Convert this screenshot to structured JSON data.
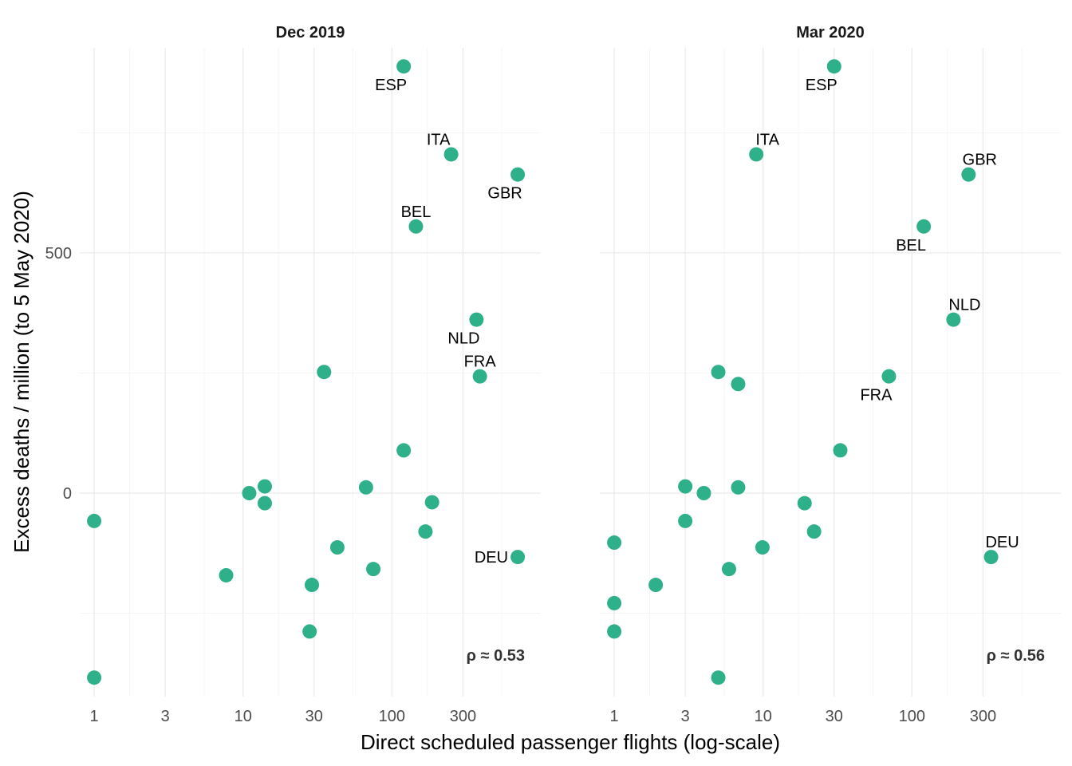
{
  "chart_data": {
    "type": "scatter",
    "xlabel": "Direct scheduled passenger flights (log-scale)",
    "ylabel": "Excess deaths / million (to 5 May 2020)",
    "x_scale": "log10",
    "xlim": [
      0.8,
      1000
    ],
    "ylim": [
      -420,
      930
    ],
    "x_ticks": [
      1,
      3,
      10,
      30,
      100,
      300
    ],
    "x_tick_labels": [
      "1",
      "3",
      "10",
      "30",
      "100",
      "300"
    ],
    "y_ticks": [
      0,
      500
    ],
    "y_tick_labels": [
      "0",
      "500"
    ],
    "point_color": "#2eb08a",
    "panels": [
      {
        "title": "Dec 2019",
        "annotation": "ρ ≈ 0.53",
        "points": [
          {
            "x": 120,
            "y": 888,
            "label": "ESP",
            "label_pos": "below-left"
          },
          {
            "x": 250,
            "y": 705,
            "label": "ITA",
            "label_pos": "above-left"
          },
          {
            "x": 700,
            "y": 663,
            "label": "GBR",
            "label_pos": "below-left"
          },
          {
            "x": 145,
            "y": 555,
            "label": "BEL",
            "label_pos": "above"
          },
          {
            "x": 370,
            "y": 361,
            "label": "NLD",
            "label_pos": "below-left"
          },
          {
            "x": 390,
            "y": 243,
            "label": "FRA",
            "label_pos": "above"
          },
          {
            "x": 700,
            "y": -133,
            "label": "DEU",
            "label_pos": "left"
          },
          {
            "x": 1,
            "y": -58,
            "label": ""
          },
          {
            "x": 1,
            "y": -384,
            "label": ""
          },
          {
            "x": 7.7,
            "y": -171,
            "label": ""
          },
          {
            "x": 11,
            "y": 0,
            "label": ""
          },
          {
            "x": 14,
            "y": 14,
            "label": ""
          },
          {
            "x": 14,
            "y": -21,
            "label": ""
          },
          {
            "x": 28,
            "y": -288,
            "label": ""
          },
          {
            "x": 29,
            "y": -191,
            "label": ""
          },
          {
            "x": 35,
            "y": 252,
            "label": ""
          },
          {
            "x": 43,
            "y": -113,
            "label": ""
          },
          {
            "x": 67,
            "y": 12,
            "label": ""
          },
          {
            "x": 75,
            "y": -158,
            "label": ""
          },
          {
            "x": 120,
            "y": 89,
            "label": ""
          },
          {
            "x": 168,
            "y": -80,
            "label": ""
          },
          {
            "x": 186,
            "y": -19,
            "label": ""
          }
        ]
      },
      {
        "title": "Mar 2020",
        "annotation": "ρ ≈ 0.56",
        "points": [
          {
            "x": 30,
            "y": 888,
            "label": "ESP",
            "label_pos": "below-left"
          },
          {
            "x": 9,
            "y": 705,
            "label": "ITA",
            "label_pos": "above-right"
          },
          {
            "x": 240,
            "y": 663,
            "label": "GBR",
            "label_pos": "above-right"
          },
          {
            "x": 120,
            "y": 555,
            "label": "BEL",
            "label_pos": "below-left"
          },
          {
            "x": 190,
            "y": 361,
            "label": "NLD",
            "label_pos": "above-right"
          },
          {
            "x": 70,
            "y": 243,
            "label": "FRA",
            "label_pos": "below-left"
          },
          {
            "x": 340,
            "y": -133,
            "label": "DEU",
            "label_pos": "above-right"
          },
          {
            "x": 1,
            "y": -103,
            "label": ""
          },
          {
            "x": 1,
            "y": -229,
            "label": ""
          },
          {
            "x": 1,
            "y": -288,
            "label": ""
          },
          {
            "x": 1.9,
            "y": -191,
            "label": ""
          },
          {
            "x": 3,
            "y": 14,
            "label": ""
          },
          {
            "x": 3,
            "y": -58,
            "label": ""
          },
          {
            "x": 4,
            "y": 0,
            "label": ""
          },
          {
            "x": 5,
            "y": 252,
            "label": ""
          },
          {
            "x": 5,
            "y": -384,
            "label": ""
          },
          {
            "x": 5.9,
            "y": -158,
            "label": ""
          },
          {
            "x": 6.8,
            "y": 227,
            "label": ""
          },
          {
            "x": 6.8,
            "y": 12,
            "label": ""
          },
          {
            "x": 9.9,
            "y": -113,
            "label": ""
          },
          {
            "x": 19,
            "y": -21,
            "label": ""
          },
          {
            "x": 22,
            "y": -80,
            "label": ""
          },
          {
            "x": 33,
            "y": 89,
            "label": ""
          }
        ]
      }
    ]
  }
}
